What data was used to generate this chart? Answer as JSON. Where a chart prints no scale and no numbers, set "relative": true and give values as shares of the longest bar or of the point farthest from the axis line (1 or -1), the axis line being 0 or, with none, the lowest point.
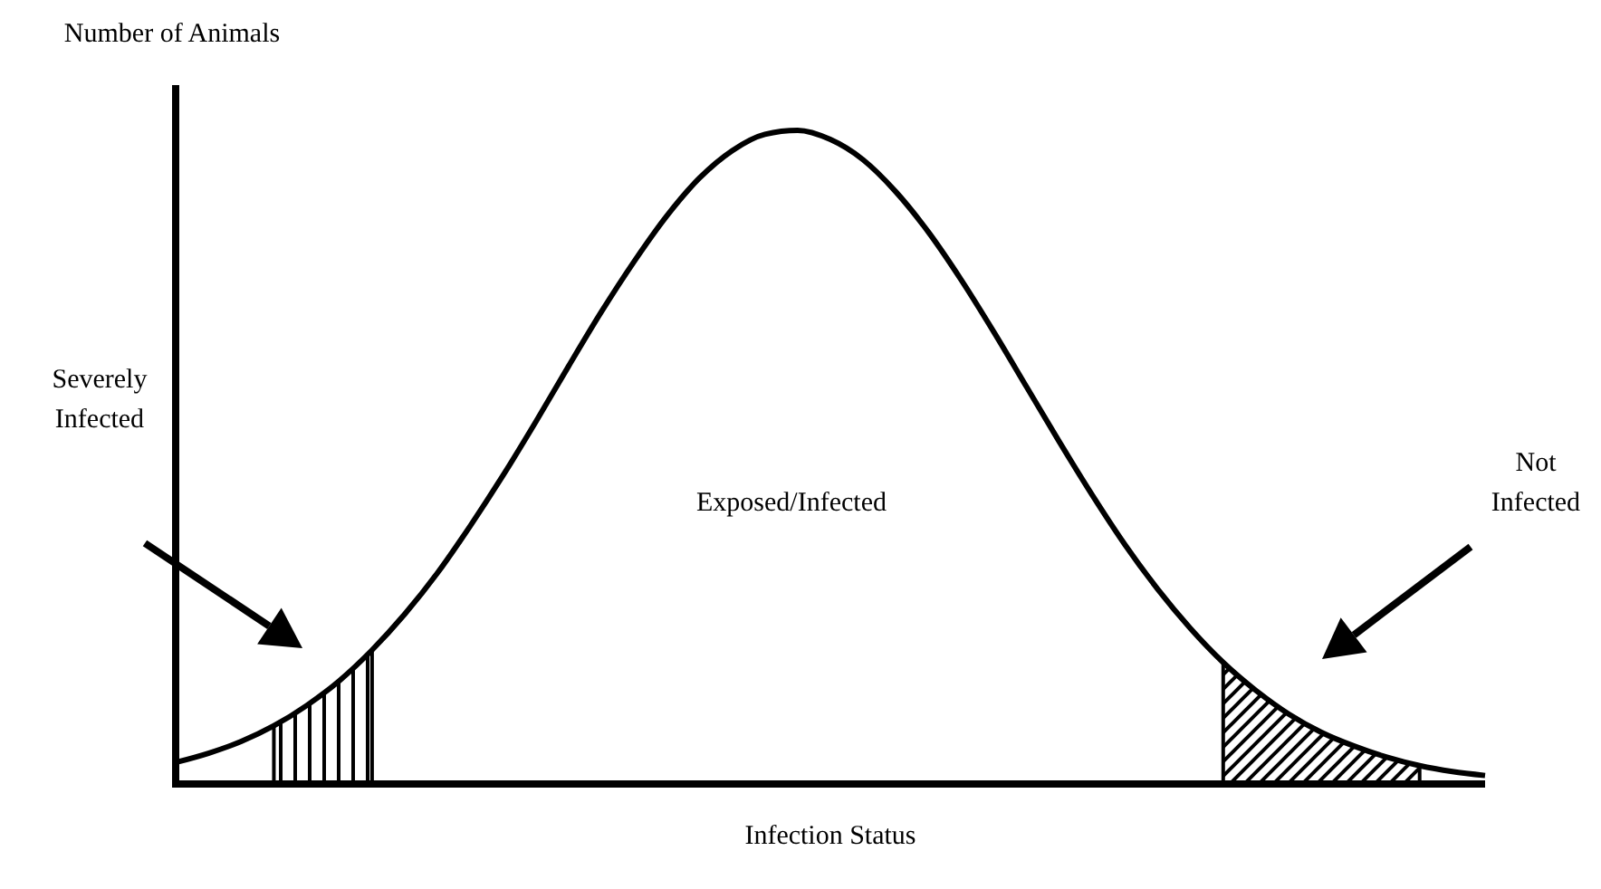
{
  "chart_data": {
    "type": "line",
    "relative": true,
    "xlabel": "Infection Status",
    "ylabel": "Number of Animals",
    "categories": [
      null,
      null,
      null,
      null,
      null,
      null,
      null,
      null,
      null,
      null,
      null,
      null,
      null,
      null,
      null,
      null,
      null,
      null,
      null,
      null,
      null,
      null,
      null,
      null,
      null,
      null,
      null,
      null,
      null,
      null,
      null,
      null,
      null,
      null,
      null,
      null,
      null,
      null,
      null,
      null,
      null
    ],
    "series": [
      {
        "color": "#000000",
        "values": [
          0.033,
          0.047,
          0.065,
          0.089,
          0.12,
          0.158,
          0.205,
          0.26,
          0.323,
          0.395,
          0.472,
          0.554,
          0.639,
          0.722,
          0.799,
          0.869,
          0.927,
          0.969,
          0.994,
          1,
          0.986,
          0.955,
          0.906,
          0.844,
          0.771,
          0.691,
          0.607,
          0.523,
          0.442,
          0.366,
          0.298,
          0.238,
          0.186,
          0.143,
          0.107,
          0.079,
          0.058,
          0.041,
          0.028,
          0.019,
          0.013
        ]
      },
      {
        "type": "area",
        "color": "#000000",
        "values": [
          null,
          null,
          null,
          0.089,
          0.12,
          0.158,
          0.205,
          null,
          null,
          null,
          null,
          null,
          null,
          null,
          null,
          null,
          null,
          null,
          null,
          null,
          null,
          null,
          null,
          null,
          null,
          null,
          null,
          null,
          null,
          null,
          null,
          null,
          null,
          null,
          null,
          null,
          null,
          null,
          null,
          null,
          null
        ]
      },
      {
        "type": "area",
        "color": "#000000",
        "values": [
          null,
          null,
          null,
          null,
          null,
          null,
          null,
          null,
          null,
          null,
          null,
          null,
          null,
          null,
          null,
          null,
          null,
          null,
          null,
          null,
          null,
          null,
          null,
          null,
          null,
          null,
          null,
          null,
          null,
          null,
          null,
          null,
          0.186,
          0.143,
          0.107,
          0.079,
          0.058,
          0.041,
          0.028,
          null,
          null
        ]
      }
    ],
    "annotations": [
      "Severely Infected",
      "Exposed/Infected",
      "Not Infected"
    ]
  }
}
